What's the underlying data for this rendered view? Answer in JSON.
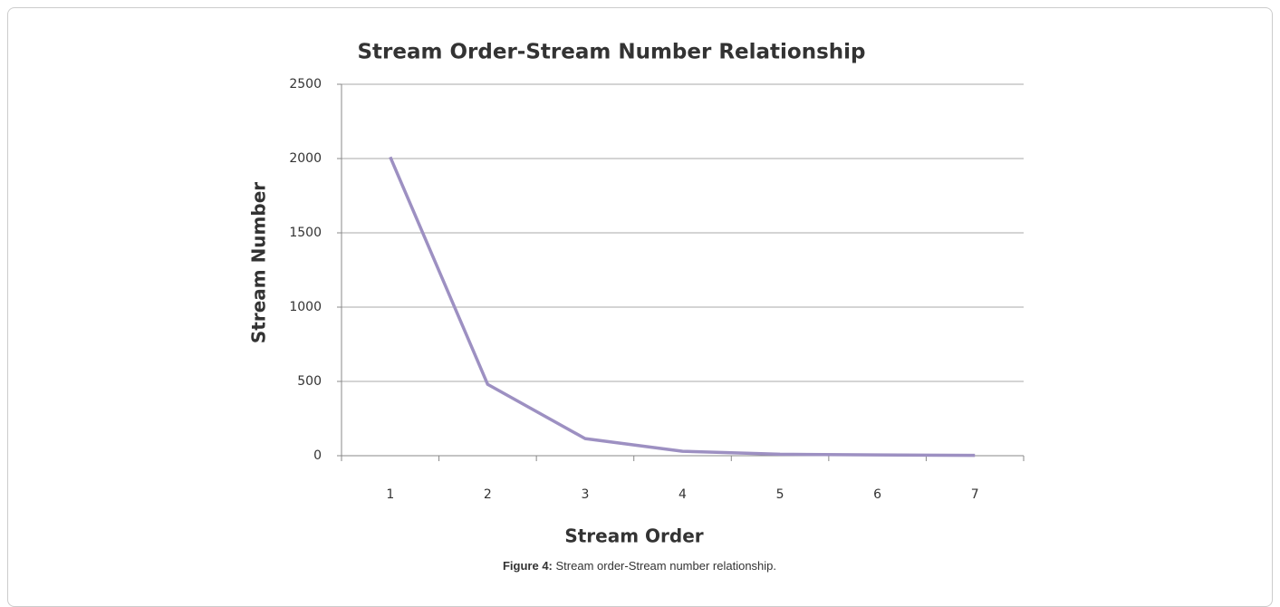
{
  "chart_data": {
    "type": "line",
    "title": "Stream Order-Stream Number Relationship",
    "x_label": "Stream Order",
    "y_label": "Stream Number",
    "categories": [
      "1",
      "2",
      "3",
      "4",
      "5",
      "6",
      "7"
    ],
    "series": [
      {
        "name": "Stream Number",
        "color": "#9d90c2",
        "values": [
          2010,
          480,
          115,
          30,
          10,
          5,
          2
        ]
      }
    ],
    "ylim": [
      0,
      2500
    ],
    "yticks": [
      0,
      500,
      1000,
      1500,
      2000,
      2500
    ],
    "grid": true
  },
  "caption": {
    "label": "Figure 4:",
    "text": "Stream order-Stream number relationship."
  }
}
